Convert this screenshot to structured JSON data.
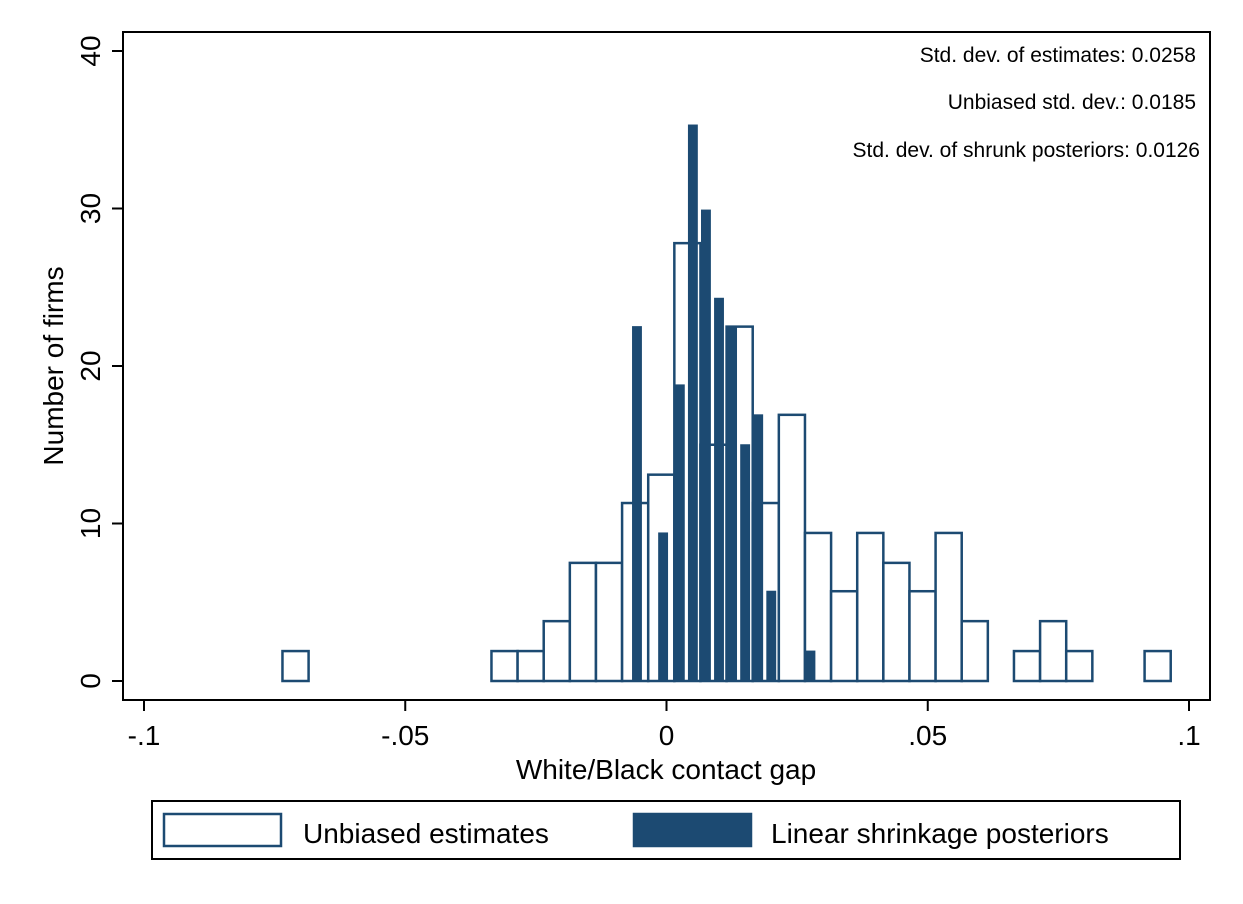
{
  "colors": {
    "navy": "#1c4a72",
    "background": "#ffffff",
    "axis": "#000000"
  },
  "chart_data": {
    "type": "bar",
    "xlabel": "White/Black contact gap",
    "ylabel": "Number of firms",
    "xlim": [
      -0.1,
      0.1
    ],
    "ylim": [
      0,
      40
    ],
    "xticks": [
      {
        "value": -0.1,
        "label": "-.1"
      },
      {
        "value": -0.05,
        "label": "-.05"
      },
      {
        "value": 0,
        "label": "0"
      },
      {
        "value": 0.05,
        "label": ".05"
      },
      {
        "value": 0.1,
        "label": ".1"
      }
    ],
    "yticks": [
      {
        "value": 0,
        "label": "0"
      },
      {
        "value": 10,
        "label": "10"
      },
      {
        "value": 20,
        "label": "20"
      },
      {
        "value": 30,
        "label": "30"
      },
      {
        "value": 40,
        "label": "40"
      }
    ],
    "grid": false,
    "legend_position": "bottom",
    "annotations": [
      "Std. dev. of estimates: 0.0258",
      "Unbiased std. dev.: 0.0185",
      "Std. dev. of shrunk posteriors: 0.0126"
    ],
    "series": [
      {
        "name": "Unbiased estimates",
        "style": "hollow",
        "bins": [
          {
            "x0": -0.0735,
            "x1": -0.0685,
            "y": 1.9
          },
          {
            "x0": -0.0335,
            "x1": -0.0285,
            "y": 1.9
          },
          {
            "x0": -0.0285,
            "x1": -0.0235,
            "y": 1.9
          },
          {
            "x0": -0.0235,
            "x1": -0.0185,
            "y": 3.8
          },
          {
            "x0": -0.0185,
            "x1": -0.0135,
            "y": 7.5
          },
          {
            "x0": -0.0135,
            "x1": -0.0085,
            "y": 7.5
          },
          {
            "x0": -0.0085,
            "x1": -0.0035,
            "y": 11.3
          },
          {
            "x0": -0.0035,
            "x1": 0.0015,
            "y": 13.1
          },
          {
            "x0": 0.0015,
            "x1": 0.0065,
            "y": 27.8
          },
          {
            "x0": 0.0065,
            "x1": 0.0115,
            "y": 15.0
          },
          {
            "x0": 0.0115,
            "x1": 0.0165,
            "y": 22.5
          },
          {
            "x0": 0.0165,
            "x1": 0.0215,
            "y": 11.3
          },
          {
            "x0": 0.0215,
            "x1": 0.0265,
            "y": 16.9
          },
          {
            "x0": 0.0265,
            "x1": 0.0315,
            "y": 9.4
          },
          {
            "x0": 0.0315,
            "x1": 0.0365,
            "y": 5.7
          },
          {
            "x0": 0.0365,
            "x1": 0.0415,
            "y": 9.4
          },
          {
            "x0": 0.0415,
            "x1": 0.0465,
            "y": 7.5
          },
          {
            "x0": 0.0465,
            "x1": 0.0515,
            "y": 5.7
          },
          {
            "x0": 0.0515,
            "x1": 0.0565,
            "y": 9.4
          },
          {
            "x0": 0.0565,
            "x1": 0.0615,
            "y": 3.8
          },
          {
            "x0": 0.0665,
            "x1": 0.0715,
            "y": 1.9
          },
          {
            "x0": 0.0715,
            "x1": 0.0765,
            "y": 3.8
          },
          {
            "x0": 0.0765,
            "x1": 0.0815,
            "y": 1.9
          },
          {
            "x0": 0.0915,
            "x1": 0.0965,
            "y": 1.9
          }
        ]
      },
      {
        "name": "Linear shrinkage posteriors",
        "style": "filled",
        "bins": [
          {
            "x0": -0.0065,
            "x1": -0.0048,
            "y": 22.5
          },
          {
            "x0": -0.0015,
            "x1": 0.0002,
            "y": 9.4
          },
          {
            "x0": 0.0017,
            "x1": 0.0034,
            "y": 18.8
          },
          {
            "x0": 0.0042,
            "x1": 0.0059,
            "y": 35.3
          },
          {
            "x0": 0.0067,
            "x1": 0.0084,
            "y": 29.9
          },
          {
            "x0": 0.0092,
            "x1": 0.0109,
            "y": 24.3
          },
          {
            "x0": 0.0117,
            "x1": 0.0134,
            "y": 22.5
          },
          {
            "x0": 0.0142,
            "x1": 0.0159,
            "y": 15.0
          },
          {
            "x0": 0.0167,
            "x1": 0.0184,
            "y": 16.9
          },
          {
            "x0": 0.0192,
            "x1": 0.0209,
            "y": 5.7
          },
          {
            "x0": 0.0267,
            "x1": 0.0284,
            "y": 1.9
          }
        ],
        "offset_note": ""
      }
    ]
  }
}
